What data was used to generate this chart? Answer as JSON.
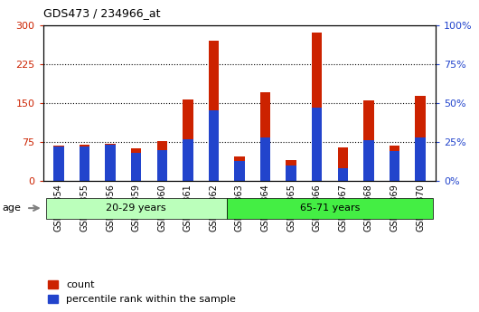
{
  "title": "GDS473 / 234966_at",
  "samples": [
    "GSM10354",
    "GSM10355",
    "GSM10356",
    "GSM10359",
    "GSM10360",
    "GSM10361",
    "GSM10362",
    "GSM10363",
    "GSM10364",
    "GSM10365",
    "GSM10366",
    "GSM10367",
    "GSM10368",
    "GSM10369",
    "GSM10370"
  ],
  "count_values": [
    68,
    70,
    72,
    63,
    77,
    157,
    270,
    48,
    170,
    40,
    285,
    65,
    155,
    68,
    163
  ],
  "percentile_values": [
    22,
    22,
    23,
    18,
    20,
    27,
    45,
    13,
    28,
    10,
    47,
    8,
    26,
    19,
    28
  ],
  "groups": [
    {
      "label": "20-29 years",
      "start": 0,
      "end": 7,
      "color": "#bbffbb"
    },
    {
      "label": "65-71 years",
      "start": 7,
      "end": 15,
      "color": "#44ee44"
    }
  ],
  "ylim_left": [
    0,
    300
  ],
  "ylim_right": [
    0,
    100
  ],
  "yticks_left": [
    0,
    75,
    150,
    225,
    300
  ],
  "yticks_right": [
    0,
    25,
    50,
    75,
    100
  ],
  "ytick_labels_right": [
    "0%",
    "25%",
    "50%",
    "75%",
    "100%"
  ],
  "bar_color_count": "#cc2200",
  "bar_color_percentile": "#2244cc",
  "bar_width": 0.4,
  "background_plot": "#ffffff",
  "age_label": "age",
  "count_label": "count",
  "percentile_label": "percentile rank within the sample"
}
